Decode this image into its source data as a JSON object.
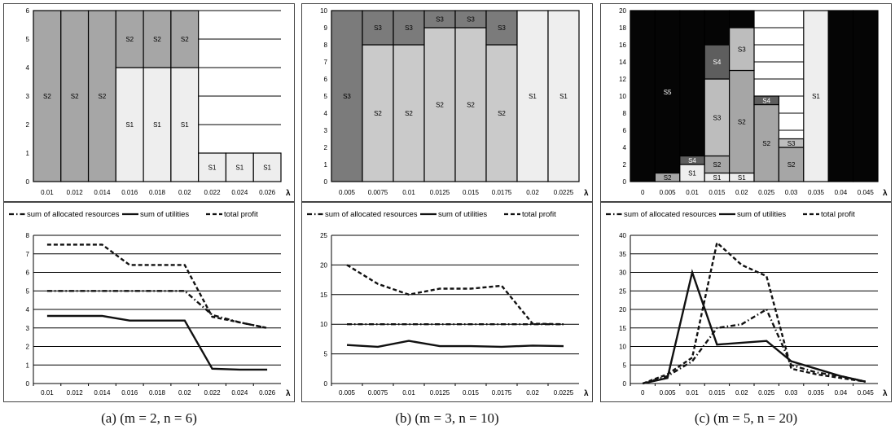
{
  "chart_data": [
    {
      "panel": "a",
      "caption": "(a)  (m = 2,  n = 6)",
      "x_symbol": "λ",
      "bar": {
        "type": "bar",
        "stacked": true,
        "categories": [
          "0.01",
          "0.012",
          "0.014",
          "0.016",
          "0.018",
          "0.02",
          "0.022",
          "0.024",
          "0.026"
        ],
        "ylim": [
          0,
          6
        ],
        "yticks": [
          "0",
          "1",
          "2",
          "3",
          "4",
          "5",
          "6"
        ],
        "grid": true,
        "stacks": [
          [
            {
              "label": "S2",
              "value": 6
            }
          ],
          [
            {
              "label": "S2",
              "value": 6
            }
          ],
          [
            {
              "label": "S2",
              "value": 6
            }
          ],
          [
            {
              "label": "S1",
              "value": 4
            },
            {
              "label": "S2",
              "value": 2
            }
          ],
          [
            {
              "label": "S1",
              "value": 4
            },
            {
              "label": "S2",
              "value": 2
            }
          ],
          [
            {
              "label": "S1",
              "value": 4
            },
            {
              "label": "S2",
              "value": 2
            }
          ],
          [
            {
              "label": "S1",
              "value": 1
            }
          ],
          [
            {
              "label": "S1",
              "value": 1
            }
          ],
          [
            {
              "label": "S1",
              "value": 1
            }
          ]
        ]
      },
      "line": {
        "type": "line",
        "categories": [
          "0.01",
          "0.012",
          "0.014",
          "0.016",
          "0.018",
          "0.02",
          "0.022",
          "0.024",
          "0.026"
        ],
        "ylim": [
          0,
          8
        ],
        "yticks": [
          "0",
          "1",
          "2",
          "3",
          "4",
          "5",
          "6",
          "7",
          "8"
        ],
        "grid": true,
        "legend_position": "top",
        "series": [
          {
            "name": "sum of allocated resources",
            "style": "dashdot",
            "values": [
              5.0,
              5.0,
              5.0,
              5.0,
              5.0,
              5.0,
              3.7,
              3.3,
              3.0
            ]
          },
          {
            "name": "sum of utilities",
            "style": "solid",
            "values": [
              3.65,
              3.65,
              3.65,
              3.4,
              3.4,
              3.4,
              0.8,
              0.75,
              0.75
            ]
          },
          {
            "name": "total profit",
            "style": "dash",
            "values": [
              7.5,
              7.5,
              7.5,
              6.4,
              6.4,
              6.4,
              3.6,
              3.3,
              3.0
            ]
          }
        ]
      }
    },
    {
      "panel": "b",
      "caption": "(b)  (m = 3,  n = 10)",
      "x_symbol": "λ",
      "bar": {
        "type": "bar",
        "stacked": true,
        "categories": [
          "0.005",
          "0.0075",
          "0.01",
          "0.0125",
          "0.015",
          "0.0175",
          "0.02",
          "0.0225"
        ],
        "ylim": [
          0,
          10
        ],
        "yticks": [
          "0",
          "1",
          "2",
          "3",
          "4",
          "5",
          "6",
          "7",
          "8",
          "9",
          "10"
        ],
        "grid": true,
        "stacks": [
          [
            {
              "label": "S3",
              "value": 10
            }
          ],
          [
            {
              "label": "S2",
              "value": 8
            },
            {
              "label": "S3",
              "value": 2
            }
          ],
          [
            {
              "label": "S2",
              "value": 8
            },
            {
              "label": "S3",
              "value": 2
            }
          ],
          [
            {
              "label": "S2",
              "value": 9
            },
            {
              "label": "S3",
              "value": 1
            }
          ],
          [
            {
              "label": "S2",
              "value": 9
            },
            {
              "label": "S3",
              "value": 1
            }
          ],
          [
            {
              "label": "S2",
              "value": 8
            },
            {
              "label": "S3",
              "value": 2
            }
          ],
          [
            {
              "label": "S1",
              "value": 10
            }
          ],
          [
            {
              "label": "S1",
              "value": 10
            }
          ]
        ]
      },
      "line": {
        "type": "line",
        "categories": [
          "0.005",
          "0.0075",
          "0.01",
          "0.0125",
          "0.015",
          "0.0175",
          "0.02",
          "0.0225"
        ],
        "ylim": [
          0,
          25
        ],
        "yticks": [
          "0",
          "5",
          "10",
          "15",
          "20",
          "25"
        ],
        "grid": true,
        "legend_position": "top",
        "series": [
          {
            "name": "sum of allocated resources",
            "style": "dashdot",
            "values": [
              10,
              10,
              10,
              10,
              10,
              10,
              10,
              10
            ]
          },
          {
            "name": "sum of utilities",
            "style": "solid",
            "values": [
              6.5,
              6.2,
              7.2,
              6.3,
              6.3,
              6.2,
              6.4,
              6.3
            ]
          },
          {
            "name": "total profit",
            "style": "dash",
            "values": [
              20,
              16.8,
              15,
              16,
              16,
              16.5,
              10.1,
              10
            ]
          }
        ]
      }
    },
    {
      "panel": "c",
      "caption": "(c)  (m = 5,  n = 20)",
      "x_symbol": "λ",
      "bar": {
        "type": "bar",
        "stacked": true,
        "categories": [
          "0",
          "0.005",
          "0.01",
          "0.015",
          "0.02",
          "0.025",
          "0.03",
          "0.035",
          "0.04",
          "0.045"
        ],
        "ylim": [
          0,
          20
        ],
        "yticks": [
          "0",
          "2",
          "4",
          "6",
          "8",
          "10",
          "12",
          "14",
          "16",
          "18",
          "20"
        ],
        "grid": true,
        "stacks": [
          [
            {
              "label": "",
              "value": 20
            }
          ],
          [
            {
              "label": "S2",
              "value": 1
            },
            {
              "label": "S5",
              "value": 19
            }
          ],
          [
            {
              "label": "S1",
              "value": 2
            },
            {
              "label": "S4",
              "value": 1
            },
            {
              "label": "",
              "value": 17
            }
          ],
          [
            {
              "label": "S1",
              "value": 1
            },
            {
              "label": "S2",
              "value": 2
            },
            {
              "label": "S3",
              "value": 9
            },
            {
              "label": "S4",
              "value": 4
            },
            {
              "label": "",
              "value": 4
            }
          ],
          [
            {
              "label": "S1",
              "value": 1
            },
            {
              "label": "S2",
              "value": 12
            },
            {
              "label": "S3",
              "value": 5
            },
            {
              "label": "",
              "value": 2
            }
          ],
          [
            {
              "label": "S2",
              "value": 9
            },
            {
              "label": "S4",
              "value": 1
            }
          ],
          [
            {
              "label": "S2",
              "value": 4
            },
            {
              "label": "S3",
              "value": 1
            }
          ],
          [
            {
              "label": "S1",
              "value": 20
            }
          ],
          [
            {
              "label": "",
              "value": 20
            }
          ],
          [
            {
              "label": "",
              "value": 20
            }
          ]
        ]
      },
      "line": {
        "type": "line",
        "categories": [
          "0",
          "0.005",
          "0.01",
          "0.015",
          "0.02",
          "0.025",
          "0.03",
          "0.035",
          "0.04",
          "0.045"
        ],
        "ylim": [
          0,
          40
        ],
        "yticks": [
          "0",
          "5",
          "10",
          "15",
          "20",
          "25",
          "30",
          "35",
          "40"
        ],
        "grid": true,
        "legend_position": "top",
        "series": [
          {
            "name": "sum of allocated resources",
            "style": "dashdot",
            "values": [
              0,
              2,
              6,
              15,
              16,
              20,
              5,
              3,
              2,
              0.5
            ]
          },
          {
            "name": "sum of utilities",
            "style": "solid",
            "values": [
              0,
              1.5,
              30,
              10.5,
              11,
              11.5,
              6,
              4,
              2,
              0.5
            ]
          },
          {
            "name": "total profit",
            "style": "dash",
            "values": [
              0,
              2.5,
              7,
              38,
              32,
              29,
              4,
              2.5,
              1.5,
              0.5
            ]
          }
        ]
      }
    }
  ],
  "colors": {
    "S1": "#eeeeee",
    "S2": "#a6a6a6",
    "S3": "#bdbdbd",
    "S4": "#5e5e5e",
    "S5": "#050505",
    "panel_b_S3": "#7b7b7b",
    "panel_b_S2": "#cacaca",
    "top_black": "#050505",
    "line": "#111111"
  }
}
